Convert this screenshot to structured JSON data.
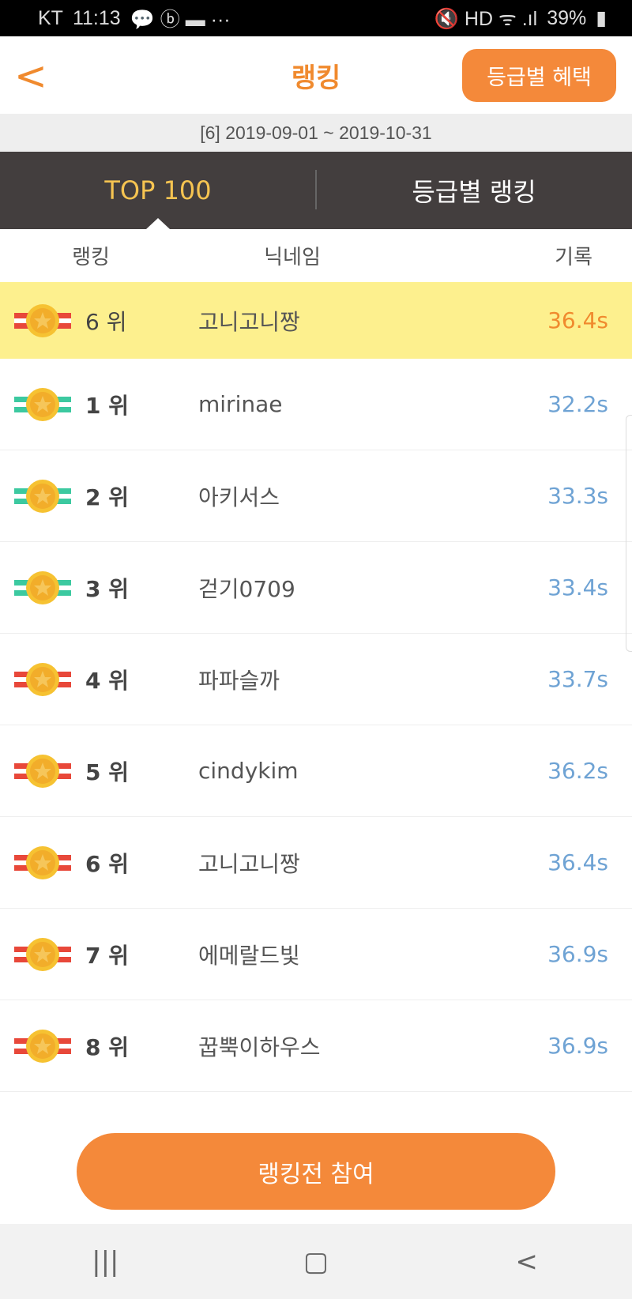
{
  "status": {
    "carrier": "KT",
    "time": "11:13",
    "battery": "39%"
  },
  "header": {
    "title": "랭킹",
    "benefit_button": "등급별 혜택"
  },
  "period": "[6]  2019-09-01 ~ 2019-10-31",
  "tabs": [
    {
      "label": "TOP 100",
      "active": true
    },
    {
      "label": "등급별 랭킹",
      "active": false
    }
  ],
  "columns": {
    "rank": "랭킹",
    "nickname": "닉네임",
    "record": "기록"
  },
  "my_row": {
    "rank": "6 위",
    "nickname": "고니고니짱",
    "record": "36.4s",
    "medal": "red"
  },
  "rows": [
    {
      "rank": "1 위",
      "nickname": "mirinae",
      "record": "32.2s",
      "medal": "green"
    },
    {
      "rank": "2 위",
      "nickname": "아키서스",
      "record": "33.3s",
      "medal": "green"
    },
    {
      "rank": "3 위",
      "nickname": "걷기0709",
      "record": "33.4s",
      "medal": "green"
    },
    {
      "rank": "4 위",
      "nickname": "파파슬까",
      "record": "33.7s",
      "medal": "red"
    },
    {
      "rank": "5 위",
      "nickname": "cindykim",
      "record": "36.2s",
      "medal": "red"
    },
    {
      "rank": "6 위",
      "nickname": "고니고니짱",
      "record": "36.4s",
      "medal": "red"
    },
    {
      "rank": "7 위",
      "nickname": "에메랄드빛",
      "record": "36.9s",
      "medal": "red"
    },
    {
      "rank": "8 위",
      "nickname": "꿉뿍이하우스",
      "record": "36.9s",
      "medal": "red"
    }
  ],
  "join_button": "랭킹전 참여",
  "colors": {
    "accent": "#f4893a",
    "highlight": "#fdf08e",
    "record": "#6fa3d4",
    "tab_bg": "#433e3e"
  }
}
